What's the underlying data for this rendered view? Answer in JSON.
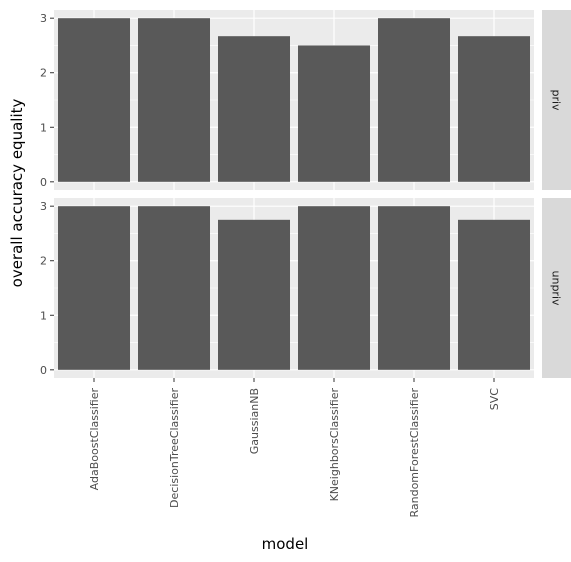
{
  "chart_data": {
    "type": "bar",
    "xlabel": "model",
    "ylabel": "overall accuracy equality",
    "categories": [
      "AdaBoostClassifier",
      "DecisionTreeClassifier",
      "GaussianNB",
      "KNeighborsClassifier",
      "RandomForestClassifier",
      "SVC"
    ],
    "yticks": [
      0,
      1,
      2,
      3
    ],
    "ylim": [
      -0.15,
      3.15
    ],
    "grid": true,
    "facets": [
      {
        "label": "priv",
        "values": [
          3.0,
          3.0,
          2.67,
          2.5,
          3.0,
          2.67
        ]
      },
      {
        "label": "unpriv",
        "values": [
          3.0,
          3.0,
          2.75,
          3.0,
          3.0,
          2.75
        ]
      }
    ],
    "colors": {
      "bar": "#595959",
      "panel": "#ebebeb",
      "grid": "#ffffff",
      "strip": "#d9d9d9"
    }
  }
}
